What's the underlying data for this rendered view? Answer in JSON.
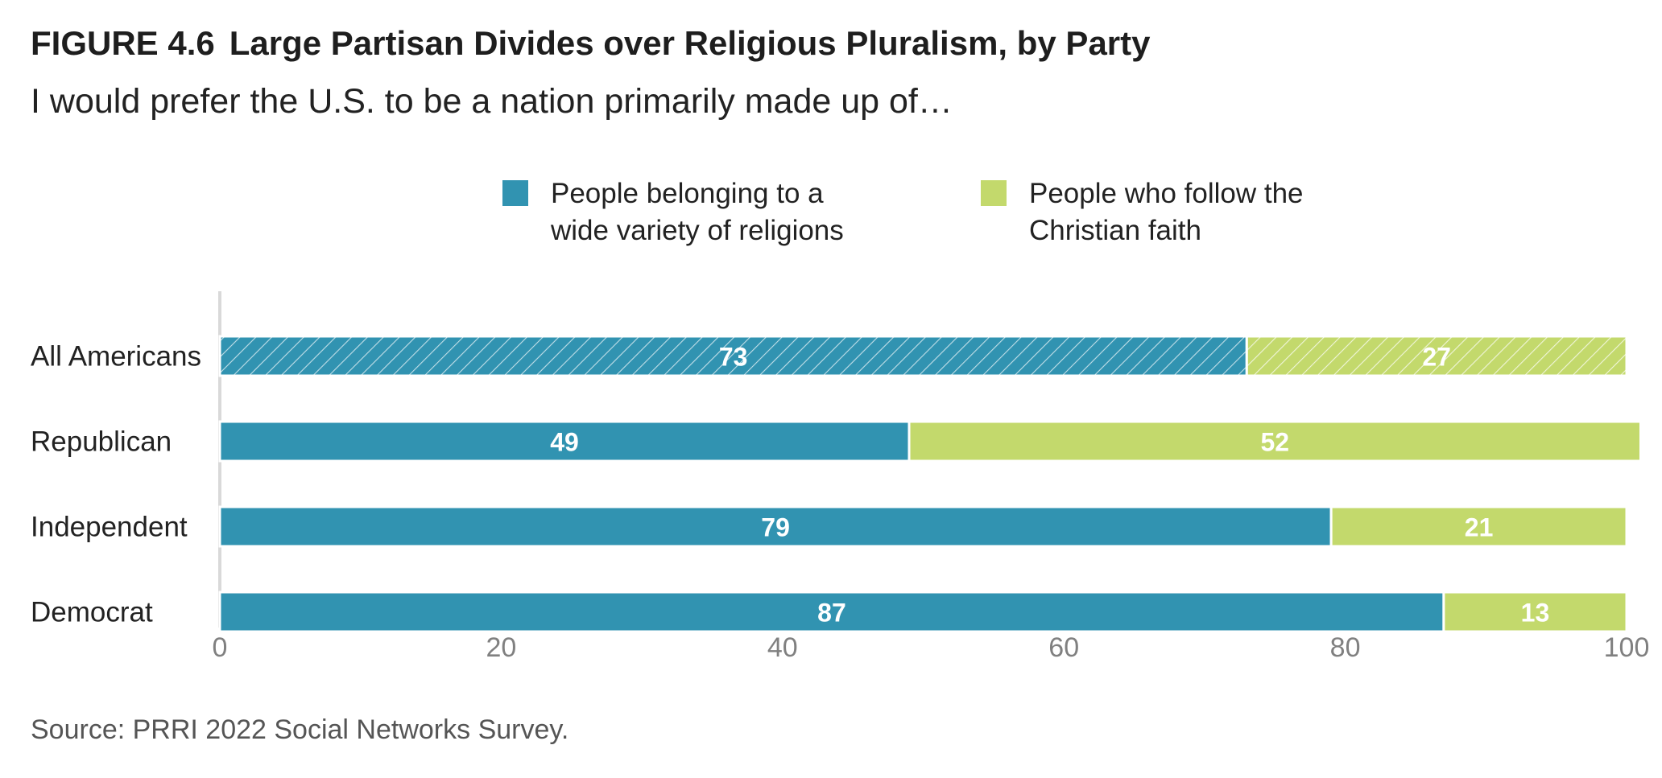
{
  "figure": {
    "label": "FIGURE 4.6",
    "title": "Large Partisan Divides over Religious Pluralism, by Party",
    "subtitle": "I would prefer the U.S. to be a nation primarily made up of…",
    "source": "Source: PRRI 2022 Social Networks Survey."
  },
  "colors": {
    "teal": "#3193b1",
    "green": "#c3d96c",
    "axis": "#d9d9d9",
    "tick_text": "#808080",
    "label_text": "#222222"
  },
  "chart_data": {
    "type": "bar",
    "orientation": "horizontal",
    "stacked": true,
    "categories": [
      "All Americans",
      "Republican",
      "Independent",
      "Democrat"
    ],
    "series": [
      {
        "name": "People belonging to a wide variety of religions",
        "color": "#3193b1",
        "values": [
          73,
          49,
          79,
          87
        ]
      },
      {
        "name": "People who follow the Christian faith",
        "color": "#c3d96c",
        "values": [
          27,
          52,
          21,
          13
        ]
      }
    ],
    "hatched_categories": [
      "All Americans"
    ],
    "xlim": [
      0,
      100
    ],
    "xticks": [
      0,
      20,
      40,
      60,
      80,
      100
    ],
    "xlabel": "",
    "ylabel": "",
    "legend_position": "top",
    "grid": false,
    "data_labels": true
  }
}
